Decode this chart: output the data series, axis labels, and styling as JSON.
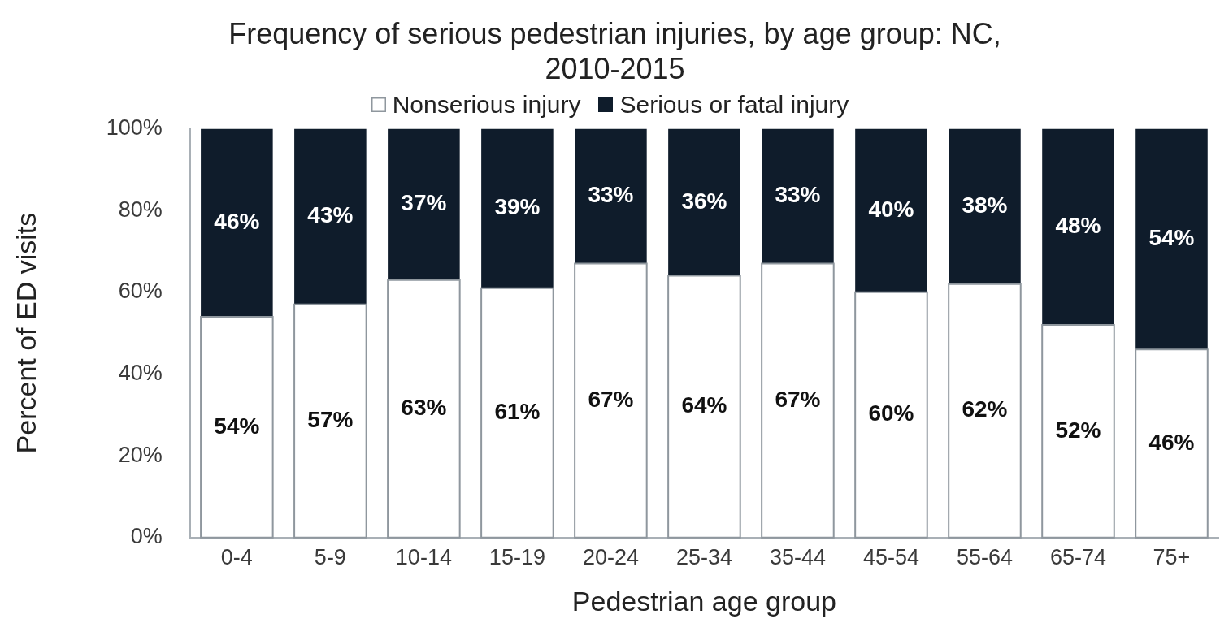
{
  "chart_data": {
    "type": "bar",
    "title": "Frequency of serious pedestrian injuries, by age group: NC, 2010-2015",
    "xlabel": "Pedestrian age group",
    "ylabel": "Percent of ED visits",
    "categories": [
      "0-4",
      "5-9",
      "10-14",
      "15-19",
      "20-24",
      "25-34",
      "35-44",
      "45-54",
      "55-64",
      "65-74",
      "75+"
    ],
    "stacked": true,
    "series": [
      {
        "name": "Nonserious injury",
        "color": "#ffffff",
        "values": [
          54,
          57,
          63,
          61,
          67,
          64,
          67,
          60,
          62,
          52,
          46
        ],
        "value_labels": [
          "54%",
          "57%",
          "63%",
          "61%",
          "67%",
          "64%",
          "67%",
          "60%",
          "62%",
          "52%",
          "46%"
        ]
      },
      {
        "name": "Serious or fatal injury",
        "color": "#0f1c2b",
        "values": [
          46,
          43,
          37,
          39,
          33,
          36,
          33,
          40,
          38,
          48,
          54
        ],
        "value_labels": [
          "46%",
          "43%",
          "37%",
          "39%",
          "33%",
          "36%",
          "33%",
          "40%",
          "38%",
          "48%",
          "54%"
        ]
      }
    ],
    "ylim": [
      0,
      100
    ],
    "yticks": [
      {
        "value": 0,
        "label": "0%"
      },
      {
        "value": 20,
        "label": "20%"
      },
      {
        "value": 40,
        "label": "40%"
      },
      {
        "value": 60,
        "label": "60%"
      },
      {
        "value": 80,
        "label": "80%"
      },
      {
        "value": 100,
        "label": "100%"
      }
    ],
    "legend": "top",
    "grid": false
  }
}
